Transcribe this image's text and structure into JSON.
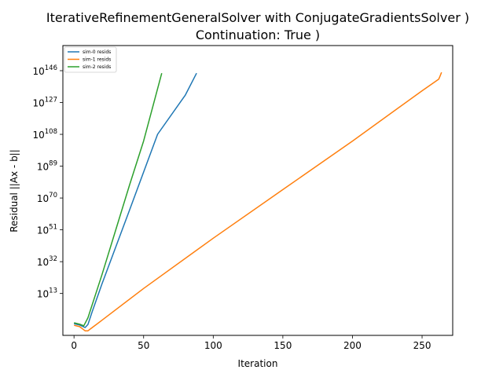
{
  "chart_data": {
    "type": "line",
    "title_line1": "IterativeRefinementGeneralSolver with ConjugateGradientsSolver )",
    "title_line2": "Continuation: True )",
    "xlabel": "Iteration",
    "ylabel": "Residual ||Ax - b||",
    "y_scale": "log",
    "xlim": [
      -8,
      272
    ],
    "ylim_log10": [
      -12,
      161
    ],
    "x_ticks": [
      0,
      50,
      100,
      150,
      200,
      250
    ],
    "x_tick_labels": [
      "0",
      "50",
      "100",
      "150",
      "200",
      "250"
    ],
    "y_ticks_log10": [
      13,
      32,
      51,
      70,
      89,
      108,
      127,
      146
    ],
    "y_tick_labels": [
      {
        "base": "10",
        "exp": "13"
      },
      {
        "base": "10",
        "exp": "32"
      },
      {
        "base": "10",
        "exp": "51"
      },
      {
        "base": "10",
        "exp": "70"
      },
      {
        "base": "10",
        "exp": "89"
      },
      {
        "base": "10",
        "exp": "108"
      },
      {
        "base": "10",
        "exp": "127"
      },
      {
        "base": "10",
        "exp": "146"
      }
    ],
    "grid": false,
    "legend_position": "top-left",
    "series": [
      {
        "name": "sim-0 resids",
        "color": "#1f77b4",
        "x": [
          0,
          4,
          8,
          10,
          13,
          20,
          40,
          60,
          80,
          88
        ],
        "log10_y": [
          -5,
          -5.8,
          -7.3,
          -5.5,
          2,
          18.5,
          63,
          108,
          131.5,
          144.5
        ]
      },
      {
        "name": "sim-1 resids",
        "color": "#ff7f0e",
        "x": [
          0,
          4,
          8,
          10,
          12,
          20,
          50,
          100,
          150,
          200,
          250,
          262,
          263,
          264
        ],
        "log10_y": [
          -6,
          -6.8,
          -9.3,
          -9.3,
          -8,
          -3,
          16,
          46,
          75,
          104,
          134,
          141,
          143,
          145
        ]
      },
      {
        "name": "sim-2 resids",
        "color": "#2ca02c",
        "x": [
          0,
          4,
          7,
          10,
          20,
          30,
          40,
          50,
          63
        ],
        "log10_y": [
          -4.5,
          -5.3,
          -6.3,
          -1.5,
          24,
          51,
          78,
          104,
          144.5
        ]
      }
    ]
  }
}
